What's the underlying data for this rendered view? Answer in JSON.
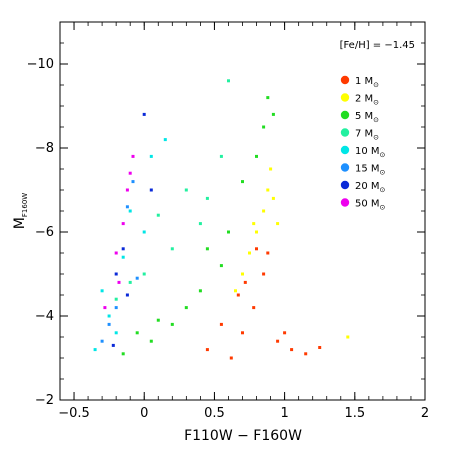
{
  "chart_data": {
    "type": "scatter",
    "title": "",
    "xlabel": "F110W − F160W",
    "ylabel": "M",
    "ylabel_sub": "F160W",
    "xlim": [
      -0.6,
      2.0
    ],
    "ylim": [
      -2.0,
      -11.0
    ],
    "y_inverted": true,
    "grid": false,
    "x_ticks": [
      {
        "value": -0.5,
        "label": "−0.5"
      },
      {
        "value": 0,
        "label": "0"
      },
      {
        "value": 0.5,
        "label": "0.5"
      },
      {
        "value": 1,
        "label": "1"
      },
      {
        "value": 1.5,
        "label": "1.5"
      },
      {
        "value": 2,
        "label": "2"
      }
    ],
    "y_ticks": [
      {
        "value": -10,
        "label": "−10"
      },
      {
        "value": -8,
        "label": "−8"
      },
      {
        "value": -6,
        "label": "−6"
      },
      {
        "value": -4,
        "label": "−4"
      },
      {
        "value": -2,
        "label": "−2"
      }
    ],
    "annotation": "[Fe/H] = −1.45",
    "legend_position": "top-right",
    "series": [
      {
        "name": "1 M",
        "color": "#ff3a00",
        "points": [
          [
            0.62,
            -3.0
          ],
          [
            0.7,
            -3.6
          ],
          [
            0.78,
            -4.2
          ],
          [
            0.85,
            -5.0
          ],
          [
            0.88,
            -5.5
          ],
          [
            0.95,
            -3.4
          ],
          [
            1.05,
            -3.2
          ],
          [
            1.15,
            -3.1
          ],
          [
            1.25,
            -3.25
          ],
          [
            0.55,
            -3.8
          ],
          [
            0.45,
            -3.2
          ],
          [
            0.72,
            -4.8
          ],
          [
            0.8,
            -5.6
          ],
          [
            0.67,
            -4.5
          ],
          [
            1.0,
            -3.6
          ]
        ]
      },
      {
        "name": "2 M",
        "color": "#ffff00",
        "points": [
          [
            0.85,
            -6.5
          ],
          [
            0.88,
            -7.0
          ],
          [
            0.8,
            -6.0
          ],
          [
            0.75,
            -5.5
          ],
          [
            0.92,
            -6.8
          ],
          [
            0.9,
            -7.5
          ],
          [
            0.7,
            -5.0
          ],
          [
            0.78,
            -6.2
          ],
          [
            1.45,
            -3.5
          ],
          [
            0.65,
            -4.6
          ],
          [
            0.95,
            -6.2
          ]
        ]
      },
      {
        "name": "5 M",
        "color": "#22dd22",
        "points": [
          [
            0.88,
            -9.2
          ],
          [
            0.85,
            -8.5
          ],
          [
            0.8,
            -7.8
          ],
          [
            0.55,
            -5.2
          ],
          [
            0.4,
            -4.6
          ],
          [
            0.2,
            -3.8
          ],
          [
            0.05,
            -3.4
          ],
          [
            -0.15,
            -3.1
          ],
          [
            0.3,
            -4.2
          ],
          [
            0.6,
            -6.0
          ],
          [
            0.7,
            -7.2
          ],
          [
            0.92,
            -8.8
          ],
          [
            0.1,
            -3.9
          ],
          [
            -0.05,
            -3.6
          ],
          [
            0.45,
            -5.6
          ]
        ]
      },
      {
        "name": "7 M",
        "color": "#22f0a0",
        "points": [
          [
            0.6,
            -9.6
          ],
          [
            0.4,
            -6.2
          ],
          [
            0.2,
            -5.6
          ],
          [
            0.0,
            -5.0
          ],
          [
            -0.2,
            -4.4
          ],
          [
            0.3,
            -7.0
          ],
          [
            0.55,
            -7.8
          ],
          [
            0.1,
            -6.4
          ],
          [
            -0.1,
            -4.8
          ],
          [
            0.45,
            -6.8
          ]
        ]
      },
      {
        "name": "10 M",
        "color": "#00e6e6",
        "points": [
          [
            -0.35,
            -3.2
          ],
          [
            -0.25,
            -4.0
          ],
          [
            -0.15,
            -5.4
          ],
          [
            -0.1,
            -6.5
          ],
          [
            0.05,
            -7.8
          ],
          [
            -0.3,
            -4.6
          ],
          [
            0.15,
            -8.2
          ],
          [
            -0.2,
            -3.6
          ],
          [
            0.0,
            -6.0
          ]
        ]
      },
      {
        "name": "15 M",
        "color": "#1e90ff",
        "points": [
          [
            -0.3,
            -3.4
          ],
          [
            -0.2,
            -4.2
          ],
          [
            -0.12,
            -6.6
          ],
          [
            -0.05,
            -4.9
          ],
          [
            -0.25,
            -3.8
          ],
          [
            -0.08,
            -7.2
          ]
        ]
      },
      {
        "name": "20 M",
        "color": "#0a2ad8",
        "points": [
          [
            -0.22,
            -3.3
          ],
          [
            -0.12,
            -4.5
          ],
          [
            -0.15,
            -5.6
          ],
          [
            0.05,
            -7.0
          ],
          [
            -0.2,
            -5.0
          ],
          [
            0.0,
            -8.8
          ]
        ]
      },
      {
        "name": "50 M",
        "color": "#ee00ee",
        "points": [
          [
            -0.1,
            -7.4
          ],
          [
            -0.12,
            -7.0
          ],
          [
            -0.15,
            -6.2
          ],
          [
            -0.2,
            -5.5
          ],
          [
            -0.28,
            -4.2
          ],
          [
            -0.18,
            -4.8
          ],
          [
            -0.08,
            -7.8
          ]
        ]
      }
    ]
  },
  "legend": {
    "unit_symbol": "⊙",
    "labels": [
      "1 M",
      "2 M",
      "5 M",
      "7 M",
      "10 M",
      "15 M",
      "20 M",
      "50 M"
    ]
  }
}
